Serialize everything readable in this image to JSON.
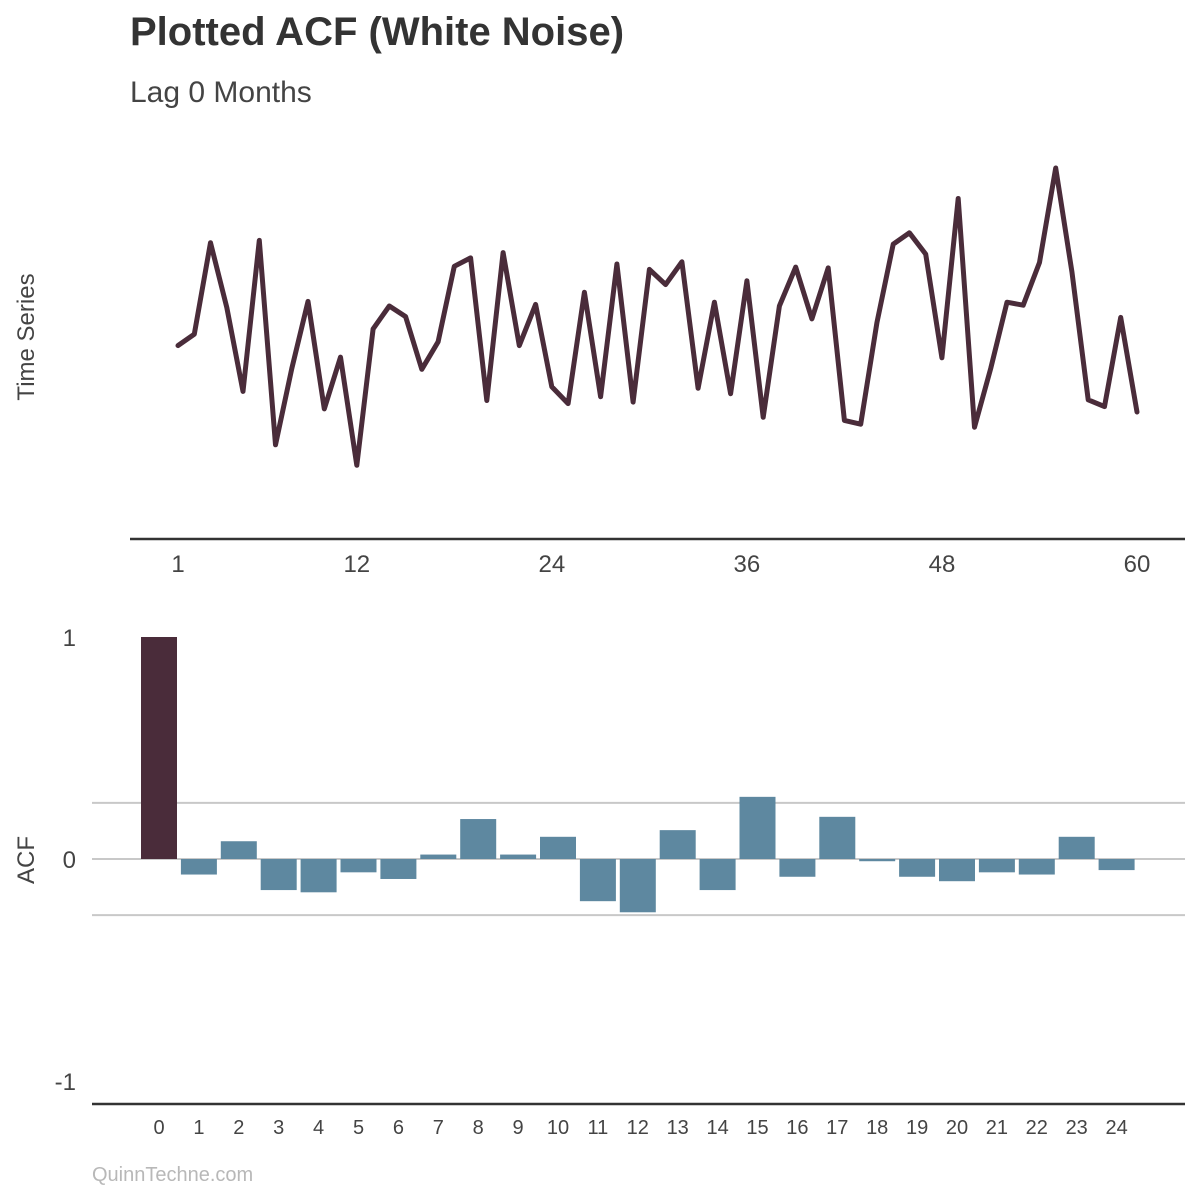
{
  "title": "Plotted ACF (White Noise)",
  "subtitle": "Lag 0 Months",
  "footer": "QuinnTechne.com",
  "colors": {
    "line": "#4a2c3a",
    "lag0_bar": "#4a2c3a",
    "bar": "#5e88a0",
    "guide": "#c8c8c8",
    "axis": "#333333"
  },
  "chart_data": [
    {
      "type": "line",
      "ylabel": "Time Series",
      "xlabel": "",
      "xlim": [
        1,
        60
      ],
      "ylim": [
        -2.4,
        2.4
      ],
      "xticks": [
        1,
        12,
        24,
        36,
        48,
        60
      ],
      "x": [
        1,
        2,
        3,
        4,
        5,
        6,
        7,
        8,
        9,
        10,
        11,
        12,
        13,
        14,
        15,
        16,
        17,
        18,
        19,
        20,
        21,
        22,
        23,
        24,
        25,
        26,
        27,
        28,
        29,
        30,
        31,
        32,
        33,
        34,
        35,
        36,
        37,
        38,
        39,
        40,
        41,
        42,
        43,
        44,
        45,
        46,
        47,
        48,
        49,
        50,
        51,
        52,
        53,
        54,
        55,
        56,
        57,
        58,
        59,
        60
      ],
      "values": [
        -0.1,
        0.05,
        1.25,
        0.4,
        -0.7,
        1.28,
        -1.4,
        -0.4,
        0.48,
        -0.93,
        -0.25,
        -1.67,
        0.12,
        0.42,
        0.28,
        -0.41,
        -0.05,
        0.94,
        1.05,
        -0.82,
        1.12,
        -0.1,
        0.44,
        -0.64,
        -0.86,
        0.6,
        -0.77,
        0.97,
        -0.84,
        0.9,
        0.7,
        1.0,
        -0.66,
        0.47,
        -0.73,
        0.75,
        -1.04,
        0.42,
        0.93,
        0.25,
        0.92,
        -1.08,
        -1.13,
        0.2,
        1.23,
        1.38,
        1.1,
        -0.26,
        1.83,
        -1.17,
        -0.4,
        0.47,
        0.43,
        0.99,
        2.23,
        0.86,
        -0.81,
        -0.9,
        0.27,
        -0.97
      ],
      "grid": false
    },
    {
      "type": "bar",
      "ylabel": "ACF",
      "xlabel": "",
      "ylim": [
        -1,
        1
      ],
      "yticks": [
        -1,
        0,
        1
      ],
      "confidence_band": [
        -0.253,
        0.253
      ],
      "categories": [
        "0",
        "1",
        "2",
        "3",
        "4",
        "5",
        "6",
        "7",
        "8",
        "9",
        "10",
        "11",
        "12",
        "13",
        "14",
        "15",
        "16",
        "17",
        "18",
        "19",
        "20",
        "21",
        "22",
        "23",
        "24"
      ],
      "values": [
        1.0,
        -0.07,
        0.08,
        -0.14,
        -0.15,
        -0.06,
        -0.09,
        0.02,
        0.18,
        0.02,
        0.1,
        -0.19,
        -0.24,
        0.13,
        -0.14,
        0.28,
        -0.08,
        0.19,
        -0.01,
        -0.08,
        -0.1,
        -0.06,
        -0.07,
        0.1,
        -0.05
      ],
      "grid": false
    }
  ]
}
